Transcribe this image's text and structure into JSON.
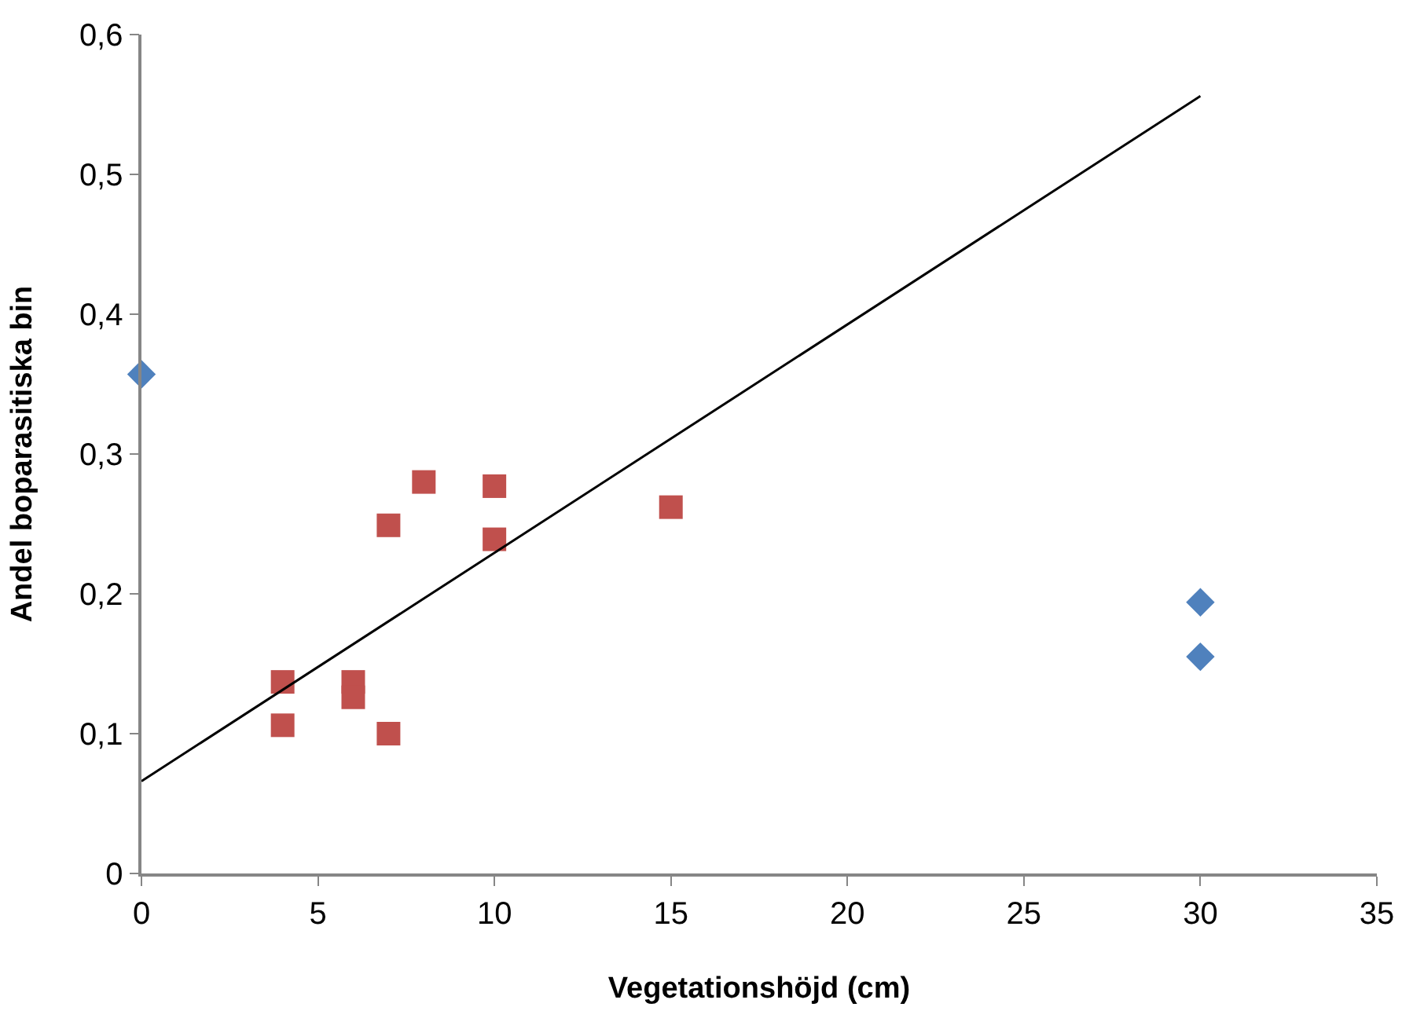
{
  "chart_data": {
    "type": "scatter",
    "xlabel": "Vegetationshöjd (cm)",
    "ylabel": "Andel boparasitiska bin",
    "xlim": [
      0,
      35
    ],
    "xticks": [
      0,
      5,
      10,
      15,
      20,
      25,
      30,
      35
    ],
    "ylim": [
      0,
      0.6
    ],
    "yticks": [
      0,
      {
        "value": 0.1,
        "label": "0,1"
      },
      {
        "value": 0.2,
        "label": "0,2"
      },
      {
        "value": 0.3,
        "label": "0,3"
      },
      {
        "value": 0.4,
        "label": "0,4"
      },
      {
        "value": 0.5,
        "label": "0,5"
      },
      {
        "value": 0.6,
        "label": "0,6"
      }
    ],
    "series": [
      {
        "marker": "diamond",
        "color": "#4f81bd",
        "x": [
          0,
          30,
          30
        ],
        "values": [
          0.357,
          0.194,
          0.155
        ]
      },
      {
        "marker": "square",
        "color": "#c0504d",
        "x": [
          4,
          4,
          6,
          6,
          7,
          7,
          8,
          10,
          10,
          15
        ],
        "values": [
          0.137,
          0.106,
          0.137,
          0.126,
          0.249,
          0.1,
          0.28,
          0.277,
          0.239,
          0.262
        ]
      },
      {
        "type": "line",
        "marker": "none",
        "line_style": "solid",
        "color": "#000000",
        "x": [
          0,
          30
        ],
        "values": [
          0.066,
          0.556
        ]
      }
    ]
  }
}
